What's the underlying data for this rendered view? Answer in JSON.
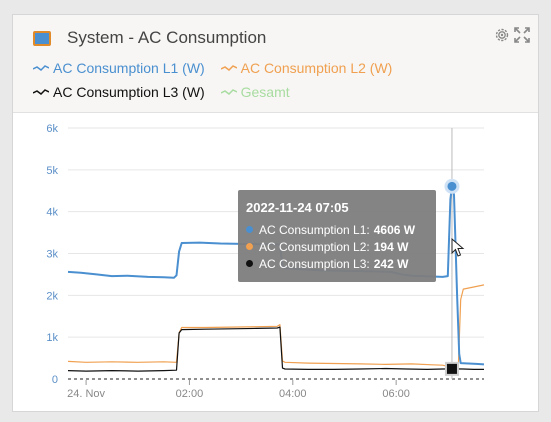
{
  "header": {
    "title": "System - AC Consumption"
  },
  "legend": [
    {
      "label": "AC Consumption L1 (W)",
      "color": "#4a8fd0"
    },
    {
      "label": "AC Consumption L2 (W)",
      "color": "#f0a050"
    },
    {
      "label": "AC Consumption L3 (W)",
      "color": "#111111"
    },
    {
      "label": "Gesamt",
      "color": "#a8dca0"
    }
  ],
  "tooltip": {
    "time": "2022-11-24 07:05",
    "rows": [
      {
        "label": "AC Consumption L1:",
        "value": "4606 W",
        "color": "#4a8fd0"
      },
      {
        "label": "AC Consumption L2:",
        "value": "194 W",
        "color": "#f0a050"
      },
      {
        "label": "AC Consumption L3:",
        "value": "242 W",
        "color": "#111111"
      }
    ]
  },
  "chart_data": {
    "type": "line",
    "x_unit": "hours after 24. Nov 00:00",
    "xlim": [
      -0.35,
      7.7
    ],
    "ylim": [
      0,
      6000
    ],
    "x_ticks": [
      {
        "x": 0,
        "label": "24. Nov"
      },
      {
        "x": 2,
        "label": "02:00"
      },
      {
        "x": 4,
        "label": "04:00"
      },
      {
        "x": 6,
        "label": "06:00"
      }
    ],
    "y_ticks": [
      {
        "y": 0,
        "label": "0"
      },
      {
        "y": 1000,
        "label": "1k"
      },
      {
        "y": 2000,
        "label": "2k"
      },
      {
        "y": 3000,
        "label": "3k"
      },
      {
        "y": 4000,
        "label": "4k"
      },
      {
        "y": 5000,
        "label": "5k"
      },
      {
        "y": 6000,
        "label": "6k"
      }
    ],
    "grid": true,
    "series": [
      {
        "name": "AC Consumption L1 (W)",
        "color": "#4a8fd0",
        "points": [
          [
            -0.35,
            2560
          ],
          [
            -0.1,
            2540
          ],
          [
            0.2,
            2500
          ],
          [
            0.5,
            2460
          ],
          [
            0.8,
            2470
          ],
          [
            1.2,
            2440
          ],
          [
            1.5,
            2430
          ],
          [
            1.7,
            2420
          ],
          [
            1.75,
            2480
          ],
          [
            1.8,
            3050
          ],
          [
            1.85,
            3250
          ],
          [
            2.2,
            3260
          ],
          [
            2.6,
            3240
          ],
          [
            3.0,
            3230
          ],
          [
            3.4,
            3220
          ],
          [
            3.6,
            3230
          ],
          [
            3.75,
            3210
          ],
          [
            3.8,
            2700
          ],
          [
            3.85,
            2650
          ],
          [
            4.2,
            2620
          ],
          [
            4.5,
            2600
          ],
          [
            4.9,
            2590
          ],
          [
            5.3,
            2580
          ],
          [
            5.6,
            2570
          ],
          [
            5.9,
            2560
          ],
          [
            6.1,
            2500
          ],
          [
            6.3,
            2470
          ],
          [
            6.5,
            2460
          ],
          [
            6.7,
            2450
          ],
          [
            6.9,
            2440
          ],
          [
            7.0,
            2460
          ],
          [
            7.05,
            4300
          ],
          [
            7.08,
            4606
          ],
          [
            7.12,
            4400
          ],
          [
            7.18,
            2000
          ],
          [
            7.22,
            600
          ],
          [
            7.25,
            380
          ],
          [
            7.4,
            370
          ],
          [
            7.55,
            360
          ],
          [
            7.7,
            350
          ]
        ]
      },
      {
        "name": "AC Consumption L2 (W)",
        "color": "#f0a050",
        "points": [
          [
            -0.35,
            420
          ],
          [
            0.0,
            400
          ],
          [
            0.5,
            410
          ],
          [
            1.0,
            400
          ],
          [
            1.5,
            410
          ],
          [
            1.75,
            400
          ],
          [
            1.8,
            1100
          ],
          [
            1.85,
            1230
          ],
          [
            2.3,
            1230
          ],
          [
            2.8,
            1240
          ],
          [
            3.3,
            1250
          ],
          [
            3.7,
            1260
          ],
          [
            3.75,
            1300
          ],
          [
            3.8,
            430
          ],
          [
            3.85,
            400
          ],
          [
            4.3,
            380
          ],
          [
            4.8,
            370
          ],
          [
            5.3,
            360
          ],
          [
            5.8,
            350
          ],
          [
            6.3,
            360
          ],
          [
            6.7,
            340
          ],
          [
            6.9,
            330
          ],
          [
            7.0,
            300
          ],
          [
            7.08,
            194
          ],
          [
            7.15,
            200
          ],
          [
            7.2,
            220
          ],
          [
            7.25,
            1900
          ],
          [
            7.3,
            2150
          ],
          [
            7.5,
            2200
          ],
          [
            7.7,
            2250
          ]
        ]
      },
      {
        "name": "AC Consumption L3 (W)",
        "color": "#111111",
        "points": [
          [
            -0.35,
            200
          ],
          [
            0.0,
            190
          ],
          [
            0.5,
            200
          ],
          [
            1.0,
            190
          ],
          [
            1.5,
            200
          ],
          [
            1.75,
            210
          ],
          [
            1.8,
            1100
          ],
          [
            1.85,
            1180
          ],
          [
            2.3,
            1190
          ],
          [
            2.8,
            1200
          ],
          [
            3.3,
            1210
          ],
          [
            3.7,
            1220
          ],
          [
            3.75,
            1240
          ],
          [
            3.8,
            260
          ],
          [
            3.85,
            240
          ],
          [
            4.3,
            230
          ],
          [
            4.8,
            230
          ],
          [
            5.3,
            240
          ],
          [
            5.8,
            250
          ],
          [
            6.2,
            240
          ],
          [
            6.6,
            230
          ],
          [
            6.9,
            240
          ],
          [
            7.08,
            242
          ],
          [
            7.3,
            240
          ],
          [
            7.5,
            230
          ],
          [
            7.7,
            230
          ]
        ]
      },
      {
        "name": "Gesamt",
        "color": "#a8dca0",
        "points": []
      }
    ]
  }
}
